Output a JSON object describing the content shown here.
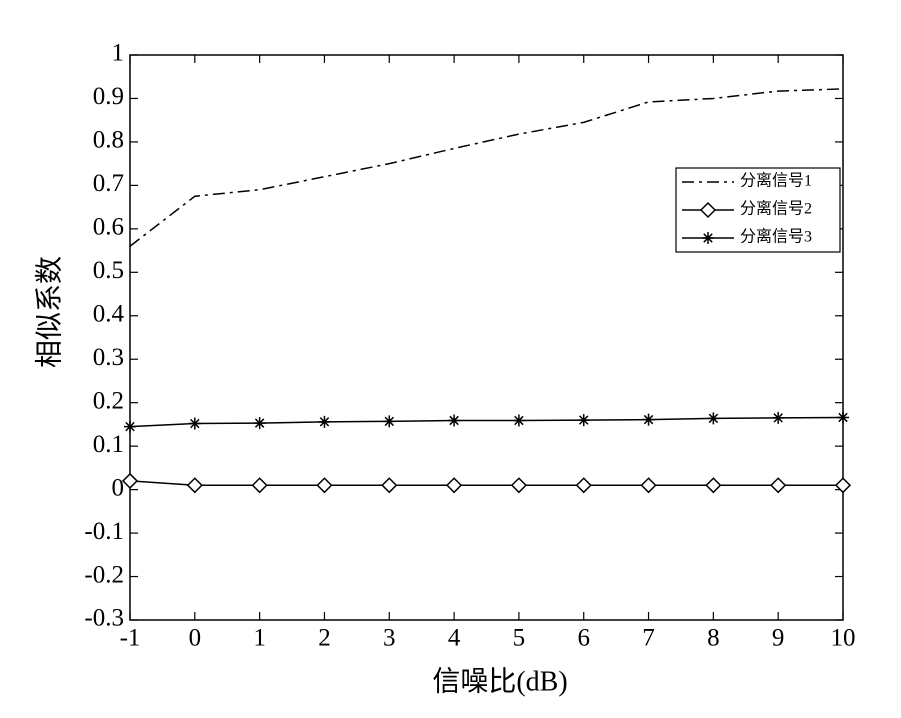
{
  "chart_data": {
    "type": "line",
    "x_label": "信噪比(dB)",
    "y_label": "相似系数",
    "x": [
      -1,
      0,
      1,
      2,
      3,
      4,
      5,
      6,
      7,
      8,
      9,
      10
    ],
    "series": [
      {
        "name": "分离信号1",
        "color": "#000000",
        "line_style": "dashdot",
        "marker": "none",
        "values": [
          0.56,
          0.675,
          0.69,
          0.72,
          0.75,
          0.785,
          0.818,
          0.845,
          0.892,
          0.9,
          0.917,
          0.922
        ]
      },
      {
        "name": "分离信号2",
        "color": "#000000",
        "line_style": "solid",
        "marker": "diamond",
        "values": [
          0.02,
          0.01,
          0.01,
          0.01,
          0.01,
          0.01,
          0.01,
          0.01,
          0.01,
          0.01,
          0.01,
          0.01
        ]
      },
      {
        "name": "分离信号3",
        "color": "#000000",
        "line_style": "solid",
        "marker": "asterisk",
        "values": [
          0.145,
          0.152,
          0.153,
          0.156,
          0.157,
          0.159,
          0.159,
          0.16,
          0.161,
          0.164,
          0.165,
          0.166
        ]
      }
    ],
    "xlim": [
      -1,
      10
    ],
    "ylim": [
      -0.3,
      1
    ],
    "xticks": [
      -1,
      0,
      1,
      2,
      3,
      4,
      5,
      6,
      7,
      8,
      9,
      10
    ],
    "yticks": [
      -0.3,
      -0.2,
      -0.1,
      0,
      0.1,
      0.2,
      0.3,
      0.4,
      0.5,
      0.6,
      0.7,
      0.8,
      0.9,
      1
    ],
    "grid": false,
    "legend": "upper-right"
  }
}
